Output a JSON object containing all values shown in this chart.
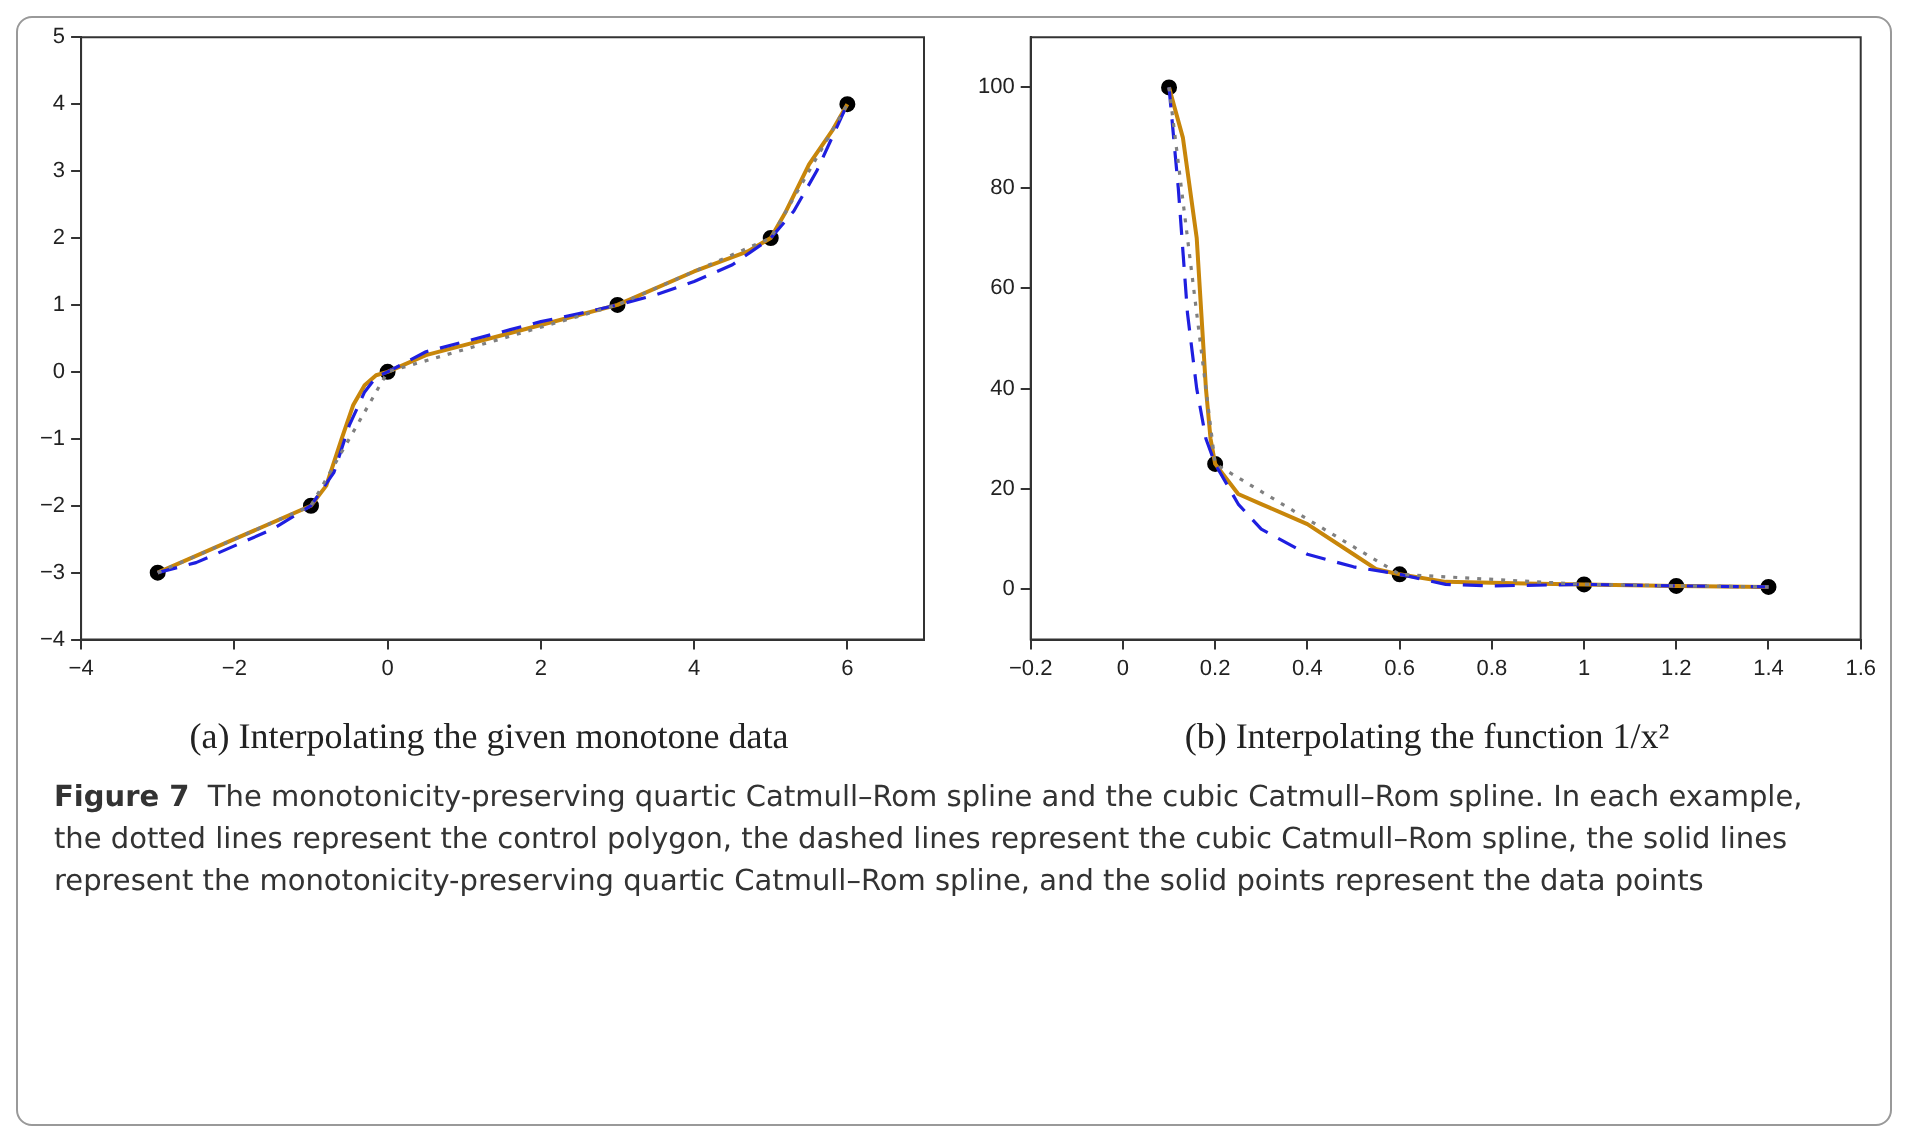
{
  "chart_data": [
    {
      "type": "line",
      "title": "(a) Interpolating the given monotone data",
      "xlim": [
        -4,
        7
      ],
      "xticks": [
        -4,
        -2,
        0,
        2,
        4,
        6
      ],
      "ylim": [
        -4,
        5
      ],
      "yticks": [
        -4,
        -3,
        -2,
        -1,
        0,
        1,
        2,
        3,
        4,
        5
      ],
      "grid": false,
      "legend": false,
      "series": [
        {
          "type": "line",
          "line_style": "dotted",
          "color": "#808080",
          "x": [
            -3,
            -1,
            0,
            3,
            5,
            6
          ],
          "values": [
            -3,
            -2,
            0,
            1,
            2,
            4
          ]
        },
        {
          "type": "line",
          "line_style": "dashed",
          "color": "#1f1fe0",
          "x": [
            -3,
            -2.5,
            -2,
            -1.5,
            -1,
            -0.7,
            -0.5,
            -0.3,
            -0.15,
            0,
            0.5,
            1,
            1.5,
            2,
            2.5,
            3,
            3.5,
            4,
            4.5,
            5,
            5.3,
            5.6,
            5.8,
            6
          ],
          "values": [
            -3,
            -2.85,
            -2.6,
            -2.35,
            -2,
            -1.5,
            -0.8,
            -0.3,
            -0.08,
            0,
            0.3,
            0.45,
            0.6,
            0.75,
            0.87,
            1,
            1.15,
            1.35,
            1.6,
            2,
            2.4,
            3,
            3.5,
            4
          ]
        },
        {
          "type": "line",
          "line_style": "solid",
          "color": "#c8860a",
          "x": [
            -3,
            -2,
            -1,
            -0.8,
            -0.6,
            -0.45,
            -0.3,
            -0.15,
            0,
            0.5,
            1,
            2,
            3,
            4,
            4.7,
            5,
            5.2,
            5.5,
            5.8,
            6
          ],
          "values": [
            -3,
            -2.5,
            -2,
            -1.7,
            -1,
            -0.5,
            -0.2,
            -0.05,
            0,
            0.25,
            0.4,
            0.7,
            1,
            1.5,
            1.8,
            2,
            2.4,
            3.1,
            3.6,
            4
          ]
        },
        {
          "type": "scatter",
          "marker": "circle",
          "color": "#000000",
          "x": [
            -3,
            -1,
            0,
            3,
            5,
            6
          ],
          "values": [
            -3,
            -2,
            0,
            1,
            2,
            4
          ]
        }
      ]
    },
    {
      "type": "line",
      "title": "(b) Interpolating the function 1/x²",
      "xlim": [
        -0.2,
        1.6
      ],
      "xticks": [
        -0.2,
        0,
        0.2,
        0.4,
        0.6,
        0.8,
        1,
        1.2,
        1.4,
        1.6
      ],
      "ylim": [
        -10,
        110
      ],
      "yticks": [
        0,
        20,
        40,
        60,
        80,
        100
      ],
      "grid": false,
      "legend": false,
      "series": [
        {
          "type": "line",
          "line_style": "dotted",
          "color": "#808080",
          "x": [
            0.1,
            0.2,
            0.6,
            1,
            1.2,
            1.4
          ],
          "values": [
            100,
            25,
            3,
            1,
            0.7,
            0.5
          ]
        },
        {
          "type": "line",
          "line_style": "dashed",
          "color": "#1f1fe0",
          "x": [
            0.1,
            0.12,
            0.14,
            0.16,
            0.18,
            0.2,
            0.25,
            0.3,
            0.4,
            0.5,
            0.6,
            0.7,
            0.8,
            1,
            1.2,
            1.4
          ],
          "values": [
            100,
            80,
            55,
            40,
            30,
            25,
            17,
            12,
            7,
            4.5,
            3,
            1,
            0.7,
            1,
            0.7,
            0.5
          ]
        },
        {
          "type": "line",
          "line_style": "solid",
          "color": "#c8860a",
          "x": [
            0.1,
            0.13,
            0.16,
            0.18,
            0.19,
            0.2,
            0.25,
            0.3,
            0.4,
            0.5,
            0.55,
            0.6,
            0.7,
            0.8,
            1,
            1.2,
            1.4
          ],
          "values": [
            100,
            90,
            70,
            40,
            30,
            25,
            19,
            17,
            13,
            7,
            4,
            3,
            1.5,
            1.3,
            1,
            0.7,
            0.5
          ]
        },
        {
          "type": "scatter",
          "marker": "circle",
          "color": "#000000",
          "x": [
            0.1,
            0.2,
            0.6,
            1,
            1.2,
            1.4
          ],
          "values": [
            100,
            25,
            3,
            1,
            0.7,
            0.5
          ]
        }
      ]
    },
    {
      "type": "other",
      "title": "Figure 7",
      "annotations": [
        "The monotonicity-preserving quartic Catmull–Rom spline and the cubic Catmull–Rom spline. In each example, the dotted lines represent the control polygon, the dashed lines represent the cubic Catmull–Rom spline, the solid lines represent the monotonicity-preserving quartic Catmull–Rom spline, and the solid points represent the data points"
      ]
    }
  ]
}
